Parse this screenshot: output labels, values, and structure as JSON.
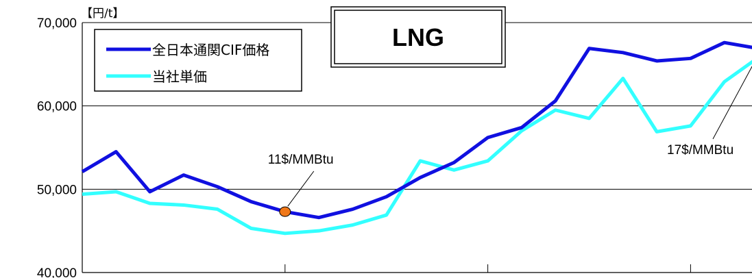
{
  "chart_data": {
    "type": "line",
    "title": "LNG",
    "unit_label": "【円/t】",
    "ylim": [
      40000,
      70000
    ],
    "y_ticks": [
      "40,000",
      "50,000",
      "60,000",
      "70,000"
    ],
    "grid": true,
    "legend_position": "top-left",
    "series": [
      {
        "name": "全日本通関CIF価格",
        "color": "#1010e0",
        "values": [
          52100,
          54500,
          49700,
          51700,
          50300,
          48500,
          47300,
          46600,
          47600,
          49100,
          51400,
          53200,
          56200,
          57400,
          60600,
          66900,
          66400,
          65400,
          65700,
          67600,
          66900
        ]
      },
      {
        "name": "当社単価",
        "color": "#33ffff",
        "values": [
          49400,
          49700,
          48300,
          48100,
          47600,
          45300,
          44700,
          45000,
          45700,
          46900,
          53400,
          52300,
          53400,
          57000,
          59500,
          58500,
          63300,
          56900,
          57600,
          62900,
          65800
        ]
      }
    ],
    "annotations": [
      {
        "text": "11$/MMBtu",
        "series": 0,
        "index": 6
      },
      {
        "text": "17$/MMBtu",
        "series": 1,
        "index": 20
      }
    ]
  }
}
